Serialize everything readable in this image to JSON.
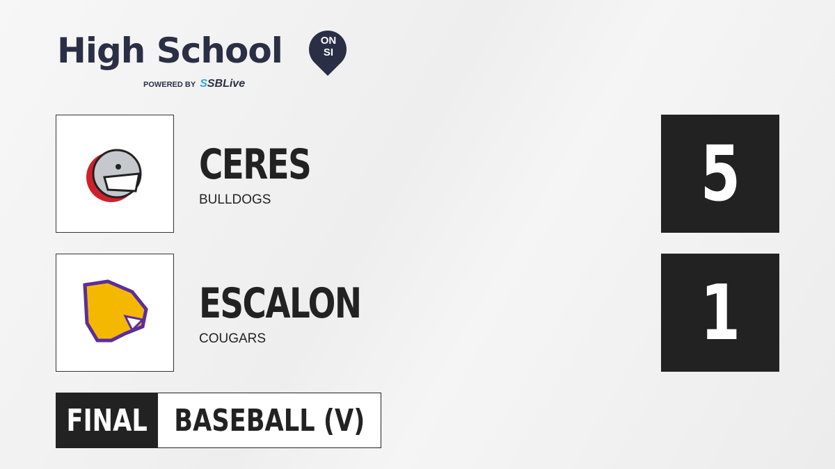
{
  "brand": {
    "title": "High School",
    "badge_top": "ON",
    "badge_bottom": "SI",
    "powered_by": "POWERED BY",
    "partner_prefix": "S",
    "partner": "SBLive"
  },
  "teams": [
    {
      "name": "CERES",
      "mascot": "BULLDOGS",
      "score": "5",
      "logo_icon": "bulldog-logo-icon"
    },
    {
      "name": "ESCALON",
      "mascot": "COUGARS",
      "score": "1",
      "logo_icon": "cougar-logo-icon"
    }
  ],
  "game": {
    "status": "FINAL",
    "sport": "BASEBALL (V)"
  },
  "colors": {
    "navy": "#2b2f45",
    "accent": "#2aa8e0",
    "dark": "#222222",
    "cougar_gold": "#f5b800",
    "cougar_purple": "#5b2d9e",
    "bulldog_red": "#d0202a"
  }
}
